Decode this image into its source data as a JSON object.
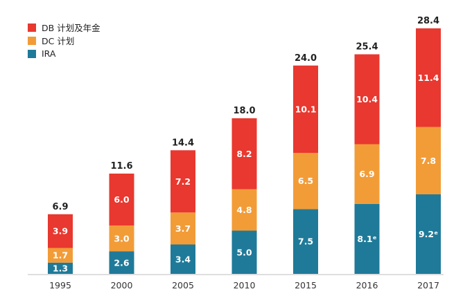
{
  "chart_data": {
    "type": "bar",
    "stacked": true,
    "title": "",
    "xlabel": "",
    "ylabel": "",
    "categories": [
      "1995",
      "2000",
      "2005",
      "2010",
      "2015",
      "2016",
      "2017"
    ],
    "series": [
      {
        "name": "IRA",
        "color": "#1f7a99",
        "values": [
          1.3,
          2.6,
          3.4,
          5.0,
          7.5,
          8.1,
          9.2
        ],
        "labels": [
          "1.3",
          "2.6",
          "3.4",
          "5.0",
          "7.5",
          "8.1ᵉ",
          "9.2ᵉ"
        ]
      },
      {
        "name": "DC 计划",
        "color": "#f29c38",
        "values": [
          1.7,
          3.0,
          3.7,
          4.8,
          6.5,
          6.9,
          7.8
        ],
        "labels": [
          "1.7",
          "3.0",
          "3.7",
          "4.8",
          "6.5",
          "6.9",
          "7.8"
        ]
      },
      {
        "name": "DB 计划及年金",
        "color": "#e8382f",
        "values": [
          3.9,
          6.0,
          7.2,
          8.2,
          10.1,
          10.4,
          11.4
        ],
        "labels": [
          "3.9",
          "6.0",
          "7.2",
          "8.2",
          "10.1",
          "10.4",
          "11.4"
        ]
      }
    ],
    "totals": [
      "6.9",
      "11.6",
      "14.4",
      "18.0",
      "24.0",
      "25.4",
      "28.4"
    ],
    "legend_order": [
      "DB 计划及年金",
      "DC 计划",
      "IRA"
    ],
    "ylim": [
      0,
      28.4
    ],
    "grid": false,
    "legend_position": "top-left"
  }
}
